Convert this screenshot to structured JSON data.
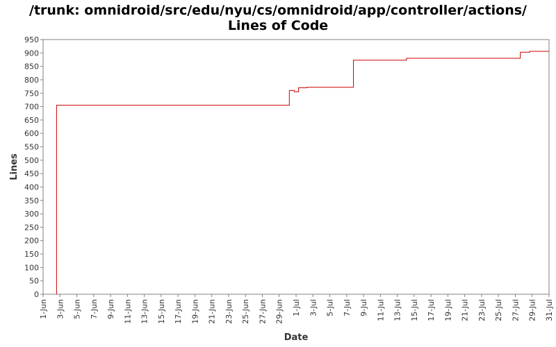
{
  "chart_data": {
    "type": "line",
    "title_line1": "/trunk: omnidroid/src/edu/nyu/cs/omnidroid/app/controller/actions/",
    "title_line2": "Lines of Code",
    "xlabel": "Date",
    "ylabel": "Lines",
    "ylim": [
      0,
      950
    ],
    "yticks": [
      0,
      50,
      100,
      150,
      200,
      250,
      300,
      350,
      400,
      450,
      500,
      550,
      600,
      650,
      700,
      750,
      800,
      850,
      900,
      950
    ],
    "xlim_days": [
      0,
      60
    ],
    "xticks": [
      {
        "day": 0,
        "label": "1-Jun"
      },
      {
        "day": 2,
        "label": "3-Jun"
      },
      {
        "day": 4,
        "label": "5-Jun"
      },
      {
        "day": 6,
        "label": "7-Jun"
      },
      {
        "day": 8,
        "label": "9-Jun"
      },
      {
        "day": 10,
        "label": "11-Jun"
      },
      {
        "day": 12,
        "label": "13-Jun"
      },
      {
        "day": 14,
        "label": "15-Jun"
      },
      {
        "day": 16,
        "label": "17-Jun"
      },
      {
        "day": 18,
        "label": "19-Jun"
      },
      {
        "day": 20,
        "label": "21-Jun"
      },
      {
        "day": 22,
        "label": "23-Jun"
      },
      {
        "day": 24,
        "label": "25-Jun"
      },
      {
        "day": 26,
        "label": "27-Jun"
      },
      {
        "day": 28,
        "label": "29-Jun"
      },
      {
        "day": 30,
        "label": "1-Jul"
      },
      {
        "day": 32,
        "label": "3-Jul"
      },
      {
        "day": 34,
        "label": "5-Jul"
      },
      {
        "day": 36,
        "label": "7-Jul"
      },
      {
        "day": 38,
        "label": "9-Jul"
      },
      {
        "day": 40,
        "label": "11-Jul"
      },
      {
        "day": 42,
        "label": "13-Jul"
      },
      {
        "day": 44,
        "label": "15-Jul"
      },
      {
        "day": 46,
        "label": "17-Jul"
      },
      {
        "day": 48,
        "label": "19-Jul"
      },
      {
        "day": 50,
        "label": "21-Jul"
      },
      {
        "day": 52,
        "label": "23-Jul"
      },
      {
        "day": 54,
        "label": "25-Jul"
      },
      {
        "day": 56,
        "label": "27-Jul"
      },
      {
        "day": 58,
        "label": "29-Jul"
      },
      {
        "day": 60,
        "label": "31-Jul"
      }
    ],
    "series": [
      {
        "step": true,
        "color": "#cc0000",
        "points": [
          {
            "day": 1.6,
            "value": 0
          },
          {
            "day": 1.6,
            "value": 705
          },
          {
            "day": 29.2,
            "value": 760
          },
          {
            "day": 29.8,
            "value": 755
          },
          {
            "day": 30.3,
            "value": 770
          },
          {
            "day": 31.3,
            "value": 772
          },
          {
            "day": 36.8,
            "value": 873
          },
          {
            "day": 43.1,
            "value": 880
          },
          {
            "day": 56.6,
            "value": 903
          },
          {
            "day": 57.7,
            "value": 906
          },
          {
            "day": 60.0,
            "value": 906
          }
        ]
      }
    ]
  },
  "colors": {
    "background": "#ffffff",
    "plot_border": "#808080",
    "line": "#cc0000",
    "text": "#333333"
  }
}
